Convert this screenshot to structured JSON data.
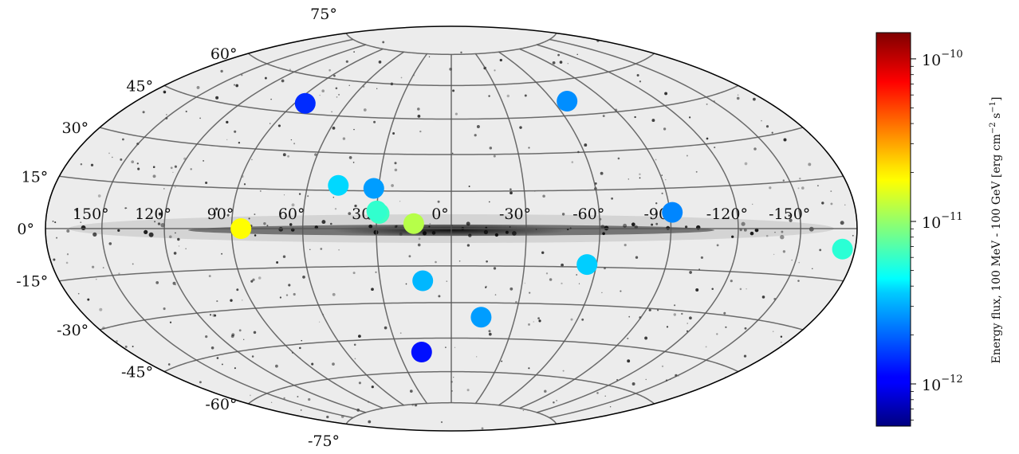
{
  "chart_data": {
    "type": "scatter",
    "projection": "hammer-aitoff (galactic)",
    "lon_ticks": [
      150,
      120,
      90,
      60,
      30,
      0,
      -30,
      -60,
      -90,
      -120,
      -150
    ],
    "lon_labels": [
      "150°",
      "120°",
      "90°",
      "60°",
      "30°",
      "0°",
      "-30°",
      "-60°",
      "-90°",
      "-120°",
      "-150°"
    ],
    "lat_labels": [
      {
        "lat": 75,
        "label": "75°"
      },
      {
        "lat": 60,
        "label": "60°"
      },
      {
        "lat": 45,
        "label": "45°"
      },
      {
        "lat": 30,
        "label": "30°"
      },
      {
        "lat": 15,
        "label": "15°"
      },
      {
        "lat": 0,
        "label": "0°"
      },
      {
        "lat": -15,
        "label": "-15°"
      },
      {
        "lat": -30,
        "label": "-30°"
      },
      {
        "lat": -45,
        "label": "-45°"
      },
      {
        "lat": -60,
        "label": "-60°"
      },
      {
        "lat": -75,
        "label": "-75°"
      }
    ],
    "points": [
      {
        "lon": 86,
        "lat": 0,
        "flux": 1.8e-11
      },
      {
        "lon": 15,
        "lat": 2,
        "flux": 1.2e-11
      },
      {
        "lon": 29,
        "lat": 6,
        "flux": 6.2e-12
      },
      {
        "lon": 30,
        "lat": 7,
        "flux": 5.8e-12
      },
      {
        "lon": 32,
        "lat": 16,
        "flux": 2.6e-12
      },
      {
        "lon": 47,
        "lat": 17,
        "flux": 3.6e-12
      },
      {
        "lon": 84,
        "lat": 49,
        "flux": 1.4e-12
      },
      {
        "lon": -68,
        "lat": 51,
        "flux": 2.4e-12
      },
      {
        "lon": -91,
        "lat": 6,
        "flux": 2.3e-12
      },
      {
        "lon": -173,
        "lat": -6,
        "flux": 5.6e-12
      },
      {
        "lon": -56,
        "lat": -14,
        "flux": 3.4e-12
      },
      {
        "lon": 12,
        "lat": -21,
        "flux": 3e-12
      },
      {
        "lon": -14,
        "lat": -36,
        "flux": 2.6e-12
      },
      {
        "lon": 17,
        "lat": -51,
        "flux": 1.2e-12
      }
    ],
    "colorbar": {
      "colormap": "jet",
      "scale": "log",
      "range": [
        5.5e-13,
        1.45e-10
      ],
      "ticks": [
        {
          "value": 1e-10,
          "base": "10",
          "exp": "−10"
        },
        {
          "value": 1e-11,
          "base": "10",
          "exp": "−11"
        },
        {
          "value": 1e-12,
          "base": "10",
          "exp": "−12"
        }
      ],
      "label": "Energy flux, 100 MeV - 100 GeV [erg cm$^{-2}$ s$^{-1}$]",
      "label_text": "Energy flux, 100 MeV - 100 GeV [erg cm",
      "label_sup1": "−2",
      "label_mid": " s",
      "label_sup2": "−1",
      "label_end": "]"
    }
  }
}
